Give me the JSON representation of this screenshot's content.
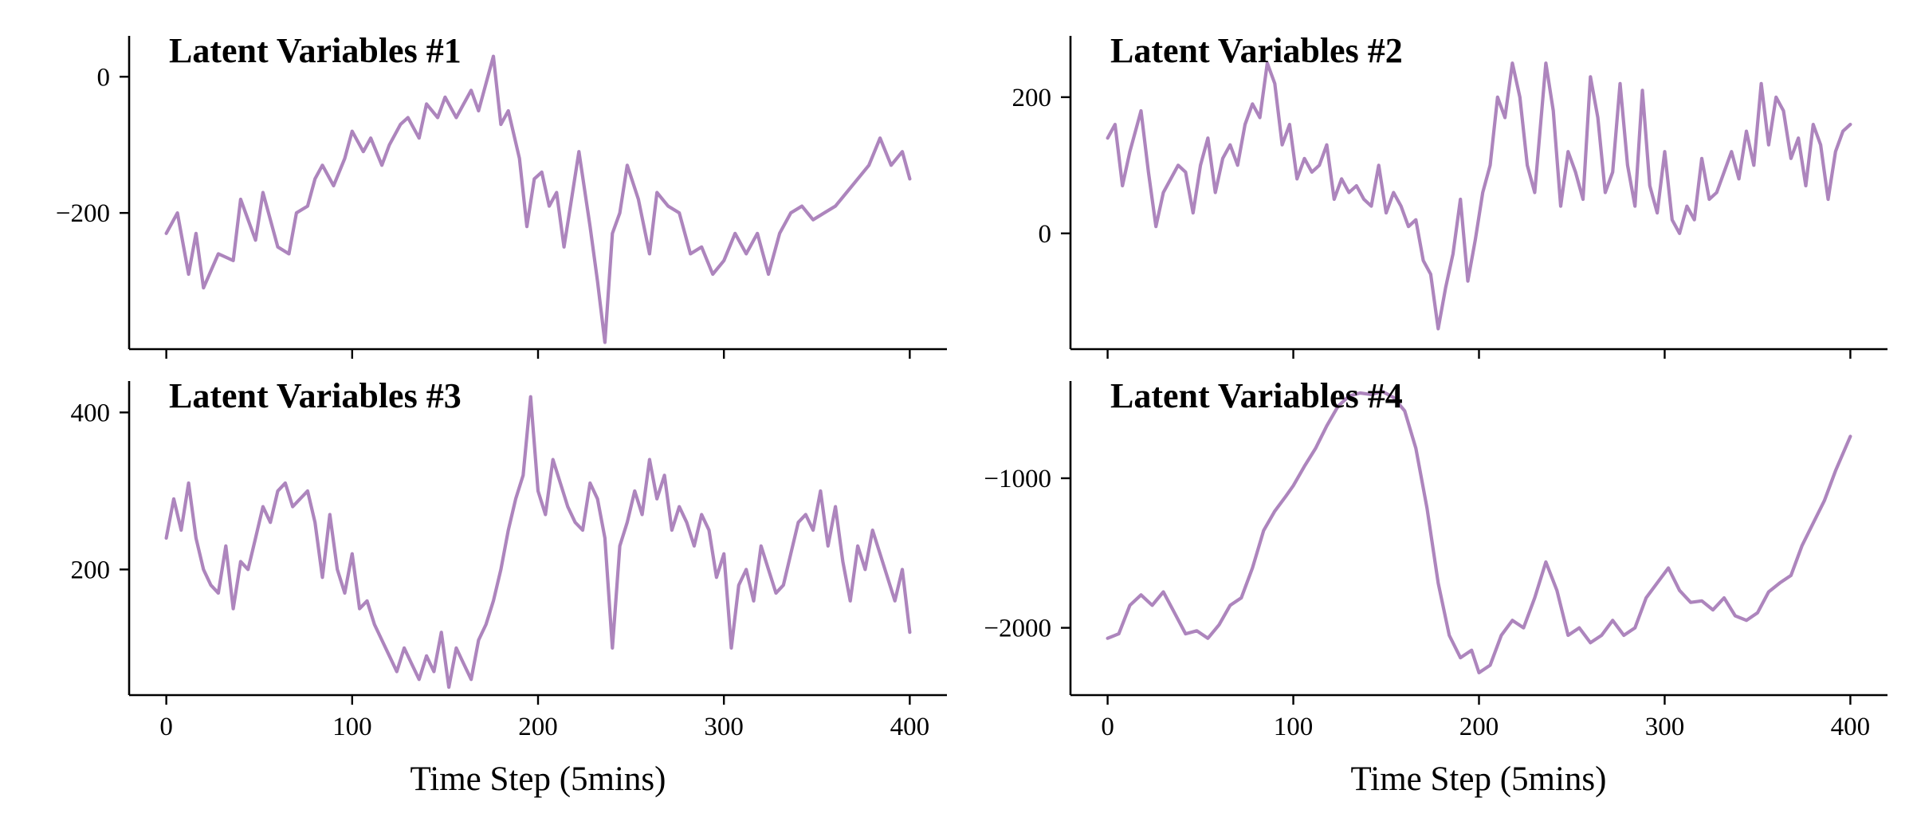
{
  "colors": {
    "series": "#ad85bd",
    "axis": "#000000"
  },
  "chart_data": [
    {
      "type": "line",
      "title": "Latent Variables #1",
      "xlabel": "",
      "ylabel": "",
      "xlim": [
        -20,
        420
      ],
      "ylim": [
        -400,
        60
      ],
      "xticks": [
        0,
        100,
        200,
        300,
        400
      ],
      "xtick_labels": [
        "",
        "",
        "",
        "",
        ""
      ],
      "yticks": [
        0,
        -200
      ],
      "ytick_labels": [
        "0",
        "−200"
      ],
      "grid": false,
      "legend": "none",
      "x": [
        0,
        6,
        12,
        16,
        20,
        28,
        36,
        40,
        48,
        52,
        60,
        66,
        70,
        76,
        80,
        84,
        90,
        96,
        100,
        106,
        110,
        116,
        120,
        126,
        130,
        136,
        140,
        146,
        150,
        156,
        160,
        164,
        168,
        172,
        176,
        180,
        184,
        190,
        194,
        198,
        202,
        206,
        210,
        214,
        218,
        222,
        228,
        232,
        236,
        240,
        244,
        248,
        254,
        260,
        264,
        270,
        276,
        282,
        288,
        294,
        300,
        306,
        312,
        318,
        324,
        330,
        336,
        342,
        348,
        354,
        360,
        366,
        372,
        378,
        384,
        390,
        396,
        400
      ],
      "y": [
        -230,
        -200,
        -290,
        -230,
        -310,
        -260,
        -270,
        -180,
        -240,
        -170,
        -250,
        -260,
        -200,
        -190,
        -150,
        -130,
        -160,
        -120,
        -80,
        -110,
        -90,
        -130,
        -100,
        -70,
        -60,
        -90,
        -40,
        -60,
        -30,
        -60,
        -40,
        -20,
        -50,
        -10,
        30,
        -70,
        -50,
        -120,
        -220,
        -150,
        -140,
        -190,
        -170,
        -250,
        -180,
        -110,
        -220,
        -300,
        -390,
        -230,
        -200,
        -130,
        -180,
        -260,
        -170,
        -190,
        -200,
        -260,
        -250,
        -290,
        -270,
        -230,
        -260,
        -230,
        -290,
        -230,
        -200,
        -190,
        -210,
        -200,
        -190,
        -170,
        -150,
        -130,
        -90,
        -130,
        -110,
        -150
      ]
    },
    {
      "type": "line",
      "title": "Latent Variables #2",
      "xlabel": "",
      "ylabel": "",
      "xlim": [
        -20,
        420
      ],
      "ylim": [
        -170,
        290
      ],
      "xticks": [
        0,
        100,
        200,
        300,
        400
      ],
      "xtick_labels": [
        "",
        "",
        "",
        "",
        ""
      ],
      "yticks": [
        200,
        0
      ],
      "ytick_labels": [
        "200",
        "0"
      ],
      "grid": false,
      "legend": "none",
      "x": [
        0,
        4,
        8,
        12,
        18,
        22,
        26,
        30,
        34,
        38,
        42,
        46,
        50,
        54,
        58,
        62,
        66,
        70,
        74,
        78,
        82,
        86,
        90,
        94,
        98,
        102,
        106,
        110,
        114,
        118,
        122,
        126,
        130,
        134,
        138,
        142,
        146,
        150,
        154,
        158,
        162,
        166,
        170,
        174,
        178,
        182,
        186,
        190,
        194,
        198,
        202,
        206,
        210,
        214,
        218,
        222,
        226,
        230,
        236,
        240,
        244,
        248,
        252,
        256,
        260,
        264,
        268,
        272,
        276,
        280,
        284,
        288,
        292,
        296,
        300,
        304,
        308,
        312,
        316,
        320,
        324,
        328,
        332,
        336,
        340,
        344,
        348,
        352,
        356,
        360,
        364,
        368,
        372,
        376,
        380,
        384,
        388,
        392,
        396,
        400
      ],
      "y": [
        140,
        160,
        70,
        120,
        180,
        90,
        10,
        60,
        80,
        100,
        90,
        30,
        100,
        140,
        60,
        110,
        130,
        100,
        160,
        190,
        170,
        250,
        220,
        130,
        160,
        80,
        110,
        90,
        100,
        130,
        50,
        80,
        60,
        70,
        50,
        40,
        100,
        30,
        60,
        40,
        10,
        20,
        -40,
        -60,
        -140,
        -80,
        -30,
        50,
        -70,
        -10,
        60,
        100,
        200,
        170,
        250,
        200,
        100,
        60,
        250,
        180,
        40,
        120,
        90,
        50,
        230,
        170,
        60,
        90,
        220,
        100,
        40,
        210,
        70,
        30,
        120,
        20,
        0,
        40,
        20,
        110,
        50,
        60,
        90,
        120,
        80,
        150,
        100,
        220,
        130,
        200,
        180,
        110,
        140,
        70,
        160,
        130,
        50,
        120,
        150,
        160
      ]
    },
    {
      "type": "line",
      "title": "Latent Variables #3",
      "xlabel": "Time Step (5mins)",
      "ylabel": "",
      "xlim": [
        -20,
        420
      ],
      "ylim": [
        40,
        440
      ],
      "xticks": [
        0,
        100,
        200,
        300,
        400
      ],
      "xtick_labels": [
        "0",
        "100",
        "200",
        "300",
        "400"
      ],
      "yticks": [
        400,
        200
      ],
      "ytick_labels": [
        "400",
        "200"
      ],
      "grid": false,
      "legend": "none",
      "x": [
        0,
        4,
        8,
        12,
        16,
        20,
        24,
        28,
        32,
        36,
        40,
        44,
        48,
        52,
        56,
        60,
        64,
        68,
        72,
        76,
        80,
        84,
        88,
        92,
        96,
        100,
        104,
        108,
        112,
        116,
        120,
        124,
        128,
        132,
        136,
        140,
        144,
        148,
        152,
        156,
        160,
        164,
        168,
        172,
        176,
        180,
        184,
        188,
        192,
        196,
        200,
        204,
        208,
        212,
        216,
        220,
        224,
        228,
        232,
        236,
        240,
        244,
        248,
        252,
        256,
        260,
        264,
        268,
        272,
        276,
        280,
        284,
        288,
        292,
        296,
        300,
        304,
        308,
        312,
        316,
        320,
        324,
        328,
        332,
        336,
        340,
        344,
        348,
        352,
        356,
        360,
        364,
        368,
        372,
        376,
        380,
        384,
        388,
        392,
        396,
        400
      ],
      "y": [
        240,
        290,
        250,
        310,
        240,
        200,
        180,
        170,
        230,
        150,
        210,
        200,
        240,
        280,
        260,
        300,
        310,
        280,
        290,
        300,
        260,
        190,
        270,
        200,
        170,
        220,
        150,
        160,
        130,
        110,
        90,
        70,
        100,
        80,
        60,
        90,
        70,
        120,
        50,
        100,
        80,
        60,
        110,
        130,
        160,
        200,
        250,
        290,
        320,
        420,
        300,
        270,
        340,
        310,
        280,
        260,
        250,
        310,
        290,
        240,
        100,
        230,
        260,
        300,
        270,
        340,
        290,
        320,
        250,
        280,
        260,
        230,
        270,
        250,
        190,
        220,
        100,
        180,
        200,
        160,
        230,
        200,
        170,
        180,
        220,
        260,
        270,
        250,
        300,
        230,
        280,
        210,
        160,
        230,
        200,
        250,
        220,
        190,
        160,
        200,
        120
      ]
    },
    {
      "type": "line",
      "title": "Latent Variables #4",
      "xlabel": "Time Step (5mins)",
      "ylabel": "",
      "xlim": [
        -20,
        420
      ],
      "ylim": [
        -2450,
        -350
      ],
      "xticks": [
        0,
        100,
        200,
        300,
        400
      ],
      "xtick_labels": [
        "0",
        "100",
        "200",
        "300",
        "400"
      ],
      "yticks": [
        -1000,
        -2000
      ],
      "ytick_labels": [
        "−1000",
        "−2000"
      ],
      "grid": false,
      "legend": "none",
      "x": [
        0,
        6,
        12,
        18,
        24,
        30,
        36,
        42,
        48,
        54,
        60,
        66,
        72,
        78,
        84,
        90,
        96,
        100,
        106,
        112,
        118,
        124,
        130,
        136,
        142,
        148,
        154,
        160,
        166,
        172,
        178,
        184,
        190,
        196,
        200,
        206,
        212,
        218,
        224,
        230,
        236,
        242,
        248,
        254,
        260,
        266,
        272,
        278,
        284,
        290,
        296,
        302,
        308,
        314,
        320,
        326,
        332,
        338,
        344,
        350,
        356,
        362,
        368,
        374,
        380,
        386,
        392,
        400
      ],
      "y": [
        -2070,
        -2040,
        -1850,
        -1780,
        -1850,
        -1760,
        -1900,
        -2040,
        -2020,
        -2070,
        -1980,
        -1850,
        -1800,
        -1600,
        -1350,
        -1220,
        -1120,
        -1050,
        -920,
        -800,
        -650,
        -520,
        -450,
        -430,
        -440,
        -420,
        -460,
        -550,
        -800,
        -1200,
        -1700,
        -2050,
        -2200,
        -2150,
        -2300,
        -2250,
        -2050,
        -1950,
        -2000,
        -1800,
        -1560,
        -1750,
        -2050,
        -2000,
        -2100,
        -2050,
        -1950,
        -2050,
        -2000,
        -1800,
        -1700,
        -1600,
        -1750,
        -1830,
        -1820,
        -1880,
        -1800,
        -1920,
        -1950,
        -1900,
        -1760,
        -1700,
        -1650,
        -1450,
        -1300,
        -1150,
        -950,
        -720
      ]
    }
  ]
}
